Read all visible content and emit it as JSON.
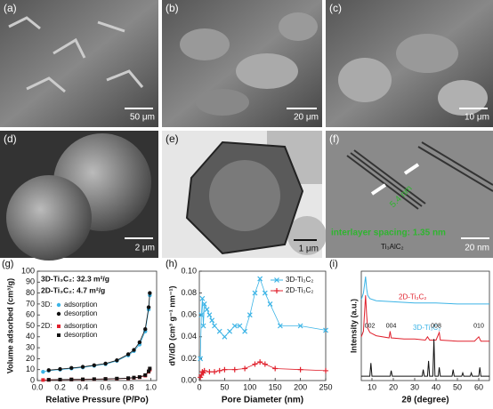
{
  "panels": [
    {
      "label": "(a)",
      "scale_bar": "50 μm"
    },
    {
      "label": "(b)",
      "scale_bar": "20 μm"
    },
    {
      "label": "(c)",
      "scale_bar": "10 μm"
    },
    {
      "label": "(d)",
      "scale_bar": "2 μm"
    },
    {
      "label": "(e)",
      "scale_bar": "1 μm"
    },
    {
      "label": "(f)",
      "scale_bar": "20 nm",
      "annotations": [
        "5.4 nm",
        "interlayer spacing: 1.35 nm"
      ]
    }
  ],
  "chart_data": [
    {
      "type": "line",
      "label": "(g)",
      "x_label": "Relative Pressure (P/Po)",
      "y_label": "Volume adsorbed (cm³/g)",
      "annotations": [
        "3D-Ti₃C₂: 32.3 m²/g",
        "2D-Ti₃C₂:  4.7 m²/g"
      ],
      "xlim": [
        0,
        1.05
      ],
      "xticks": [
        {
          "value": 0,
          "label": "0.0"
        },
        0.2,
        0.4,
        0.6,
        0.8,
        {
          "value": 1,
          "label": "1.0"
        }
      ],
      "ylim": [
        0,
        100
      ],
      "yticks": [
        0,
        10,
        20,
        30,
        40,
        50,
        60,
        70,
        80,
        90,
        100
      ],
      "series": [
        {
          "name": "adsorption",
          "group": "3D:",
          "color": "#3cb4e6",
          "marker": "circle",
          "x": [
            0.05,
            0.1,
            0.2,
            0.3,
            0.4,
            0.5,
            0.6,
            0.7,
            0.8,
            0.85,
            0.9,
            0.95,
            0.98,
            0.99
          ],
          "values": [
            8,
            9,
            10,
            11,
            12,
            13.5,
            15,
            18,
            23,
            27,
            33,
            45,
            65,
            78
          ]
        },
        {
          "name": "desorption",
          "group": "3D:",
          "color": "#111111",
          "marker": "circle",
          "x": [
            0.99,
            0.98,
            0.95,
            0.9,
            0.85,
            0.8,
            0.7,
            0.6,
            0.5,
            0.4,
            0.3,
            0.2,
            0.1
          ],
          "values": [
            80,
            67,
            47,
            35,
            28,
            24,
            18.5,
            15.5,
            14,
            12.5,
            11.5,
            10.5,
            9.5
          ]
        },
        {
          "name": "adsorption",
          "group": "2D:",
          "color": "#e0202c",
          "marker": "square",
          "x": [
            0.05,
            0.1,
            0.2,
            0.3,
            0.4,
            0.5,
            0.6,
            0.7,
            0.8,
            0.85,
            0.9,
            0.95,
            0.98,
            0.99
          ],
          "values": [
            0.5,
            0.6,
            0.8,
            1,
            1,
            1.2,
            1.4,
            1.6,
            2,
            2.5,
            3,
            4.5,
            8,
            10
          ]
        },
        {
          "name": "desorption",
          "group": "2D:",
          "color": "#111111",
          "marker": "square",
          "x": [
            0.99,
            0.98,
            0.95,
            0.9,
            0.85,
            0.8,
            0.7,
            0.6,
            0.5,
            0.4,
            0.3,
            0.2,
            0.1
          ],
          "values": [
            11,
            8.5,
            5,
            3.2,
            2.7,
            2.2,
            1.8,
            1.5,
            1.3,
            1.1,
            1,
            0.9,
            0.7
          ]
        }
      ]
    },
    {
      "type": "line",
      "label": "(h)",
      "x_label": "Pore Diameter (nm)",
      "y_label": "dV/dD (cm³ g⁻¹ nm⁻¹)",
      "xlim": [
        0,
        250
      ],
      "xticks": [
        0,
        50,
        100,
        150,
        200,
        250
      ],
      "ylim": [
        0,
        0.1
      ],
      "yticks": [
        {
          "value": 0,
          "label": "0.00"
        },
        0.02,
        0.04,
        0.06,
        0.08,
        {
          "value": 0.1,
          "label": "0.10"
        }
      ],
      "series": [
        {
          "name": "3D-Ti₃C₂",
          "color": "#3cb4e6",
          "marker": "x",
          "x": [
            2,
            4,
            6,
            8,
            10,
            15,
            20,
            25,
            30,
            40,
            50,
            60,
            70,
            80,
            90,
            100,
            110,
            120,
            130,
            140,
            160,
            200,
            250
          ],
          "values": [
            0.02,
            0.06,
            0.075,
            0.05,
            0.07,
            0.065,
            0.06,
            0.055,
            0.05,
            0.045,
            0.04,
            0.045,
            0.05,
            0.05,
            0.045,
            0.06,
            0.08,
            0.093,
            0.08,
            0.07,
            0.05,
            0.05,
            0.046
          ]
        },
        {
          "name": "2D-Ti₃C₂",
          "color": "#e0202c",
          "marker": "plus",
          "x": [
            2,
            4,
            6,
            8,
            10,
            20,
            30,
            40,
            50,
            70,
            90,
            110,
            120,
            130,
            150,
            200,
            250
          ],
          "values": [
            0.003,
            0.005,
            0.008,
            0.007,
            0.009,
            0.008,
            0.008,
            0.009,
            0.01,
            0.01,
            0.011,
            0.015,
            0.017,
            0.015,
            0.011,
            0.01,
            0.009
          ]
        }
      ]
    },
    {
      "type": "line",
      "label": "(i)",
      "x_label": "2θ (degree)",
      "y_label": "Intensity (a.u.)",
      "annotations": [
        "002",
        "004",
        "008",
        "010"
      ],
      "xlim": [
        5,
        65
      ],
      "xticks": [
        10,
        20,
        30,
        40,
        50,
        60
      ],
      "ylim": [
        0,
        100
      ],
      "series": [
        {
          "name": "3D-Ti₃C₂",
          "color": "#3cb4e6",
          "marker": "none",
          "x": [
            5,
            6,
            7,
            7.5,
            8,
            9,
            12,
            20,
            30,
            40,
            50,
            60,
            65
          ],
          "values": [
            74,
            80,
            95,
            84,
            78,
            75,
            73,
            72,
            71,
            71,
            70,
            70,
            70
          ]
        },
        {
          "name": "2D-Ti₃C₂",
          "color": "#e0202c",
          "marker": "none",
          "x": [
            5,
            6,
            7,
            7.5,
            8,
            9,
            12,
            18,
            18.5,
            19,
            25,
            30,
            35,
            36,
            37,
            40,
            41.5,
            42,
            50,
            58,
            60,
            61,
            65
          ],
          "values": [
            40,
            45,
            78,
            60,
            48,
            44,
            41,
            39,
            45,
            39,
            38,
            38,
            37,
            40,
            37,
            37,
            44,
            37,
            36,
            36,
            40,
            36,
            36
          ]
        },
        {
          "name": "Ti₃AlC₂",
          "color": "#111111",
          "marker": "none",
          "x": [
            5,
            9,
            9.5,
            10,
            18.5,
            19,
            19.5,
            33.5,
            34,
            34.5,
            36,
            36.5,
            37,
            38.5,
            39,
            39.5,
            41,
            41.5,
            42,
            47.5,
            48,
            48.5,
            52,
            52.5,
            53,
            56,
            56.5,
            57,
            60,
            60.5,
            61,
            65
          ],
          "values": [
            4,
            4,
            16,
            4,
            4,
            9,
            4,
            4,
            10,
            4,
            4,
            18,
            4,
            4,
            38,
            4,
            4,
            12,
            4,
            4,
            10,
            4,
            4,
            7,
            4,
            4,
            7,
            4,
            4,
            12,
            4,
            4
          ]
        }
      ]
    }
  ]
}
